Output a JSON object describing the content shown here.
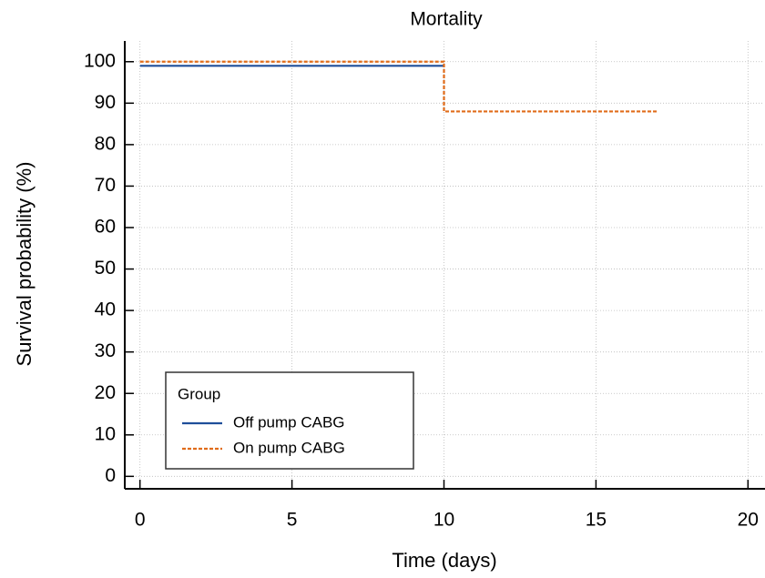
{
  "chart_data": {
    "type": "line",
    "step": "post",
    "title": "Mortality",
    "x_label": "Time (days)",
    "y_label": "Survival probability (%)",
    "xlim": [
      -0.5,
      20.5
    ],
    "ylim": [
      -3,
      105
    ],
    "xticks": [
      0,
      5,
      10,
      15,
      20
    ],
    "yticks": [
      0,
      10,
      20,
      30,
      40,
      50,
      60,
      70,
      80,
      90,
      100
    ],
    "grid": true,
    "legend_title": "Group",
    "legend_position": "lower left",
    "series": [
      {
        "name": "Off pump CABG",
        "color": "#1f4e9a",
        "dash": false,
        "x": [
          0,
          10
        ],
        "values": [
          99,
          99
        ]
      },
      {
        "name": "On pump CABG",
        "color": "#e06c1a",
        "dash": true,
        "x": [
          0,
          10,
          17
        ],
        "values": [
          100,
          88,
          88
        ]
      }
    ]
  }
}
